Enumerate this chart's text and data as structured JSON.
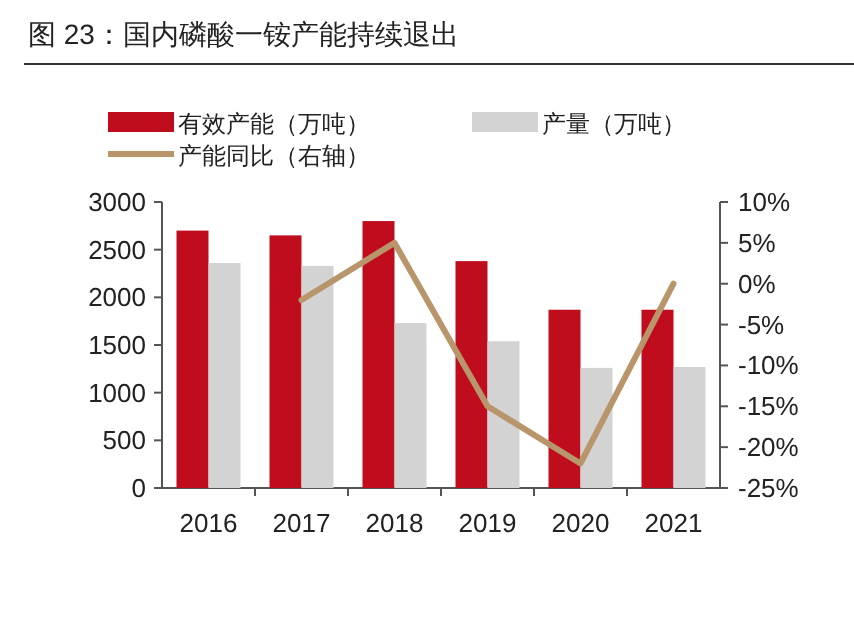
{
  "chart_data": {
    "type": "bar",
    "title": "图 23：国内磷酸一铵产能持续退出",
    "categories": [
      "2016",
      "2017",
      "2018",
      "2019",
      "2020",
      "2021"
    ],
    "series": [
      {
        "name": "有效产能（万吨）",
        "color": "#c00d1e",
        "values": [
          2700,
          2650,
          2800,
          2380,
          1870,
          1870
        ]
      },
      {
        "name": "产量（万吨）",
        "color": "#d3d3d3",
        "values": [
          2360,
          2330,
          1730,
          1540,
          1260,
          1270
        ]
      },
      {
        "name": "产能同比（右轴）",
        "type": "line",
        "axis": "y2",
        "color": "#b8956b",
        "values": [
          null,
          -2,
          5,
          -15,
          -22,
          0
        ]
      }
    ],
    "ylim": [
      0,
      3000
    ],
    "yticks": [
      0,
      500,
      1000,
      1500,
      2000,
      2500,
      3000
    ],
    "y2lim": [
      -25,
      10
    ],
    "y2ticks": [
      {
        "value": -25,
        "label": "-25%"
      },
      {
        "value": -20,
        "label": "-20%"
      },
      {
        "value": -15,
        "label": "-15%"
      },
      {
        "value": -10,
        "label": "-10%"
      },
      {
        "value": -5,
        "label": "-5%"
      },
      {
        "value": 0,
        "label": "0%"
      },
      {
        "value": 5,
        "label": "5%"
      },
      {
        "value": 10,
        "label": "10%"
      }
    ],
    "legend": "top",
    "grid": false
  }
}
